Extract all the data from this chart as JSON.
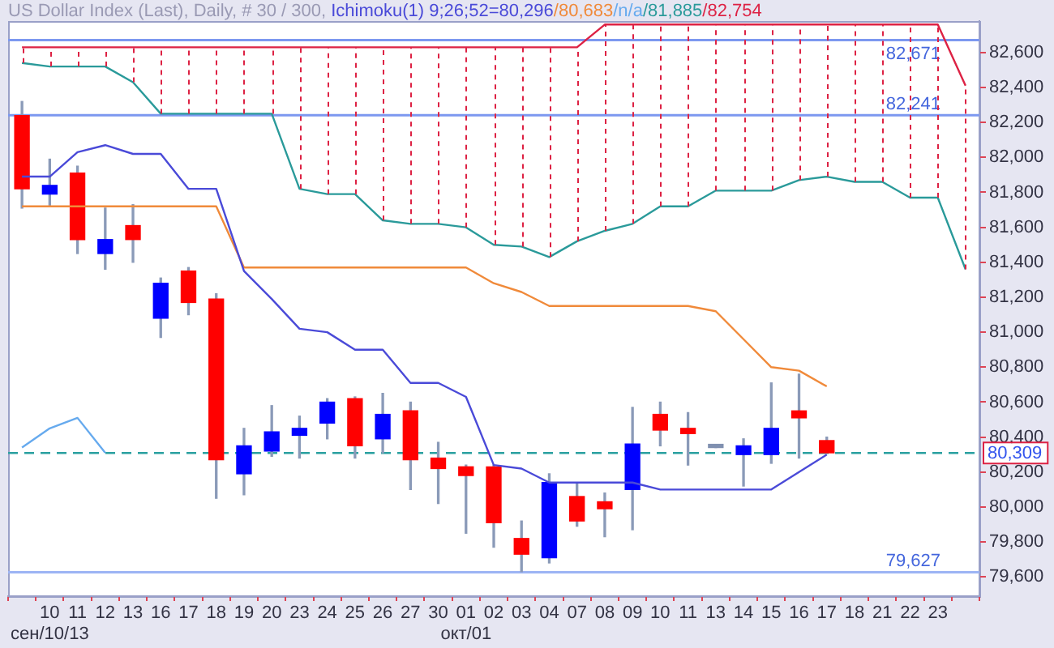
{
  "chart_data": {
    "type": "candlestick",
    "title": "US Dollar Index (Last), Daily, # 30 / 300,",
    "legend_title": "Ichimoku(1) 9;26;52=",
    "legend": "top",
    "marker": "none",
    "categories": [
      null,
      "10",
      "11",
      "12",
      "13",
      "16",
      "17",
      "18",
      "19",
      "20",
      "23",
      "24",
      "25",
      "26",
      "27",
      "30",
      "01",
      "02",
      "03",
      "04",
      "07",
      "08",
      "09",
      "10",
      "11",
      "13",
      "14",
      "15",
      "16",
      "17",
      "18",
      "21",
      "22",
      "23",
      null
    ],
    "ohlc": [
      [
        82240,
        82320,
        81710,
        81820
      ],
      [
        81790,
        81990,
        81720,
        81840
      ],
      [
        81910,
        81950,
        81450,
        81530
      ],
      [
        81450,
        81710,
        81360,
        81530
      ],
      [
        81610,
        81730,
        81400,
        81530
      ],
      [
        81080,
        81310,
        80970,
        81280
      ],
      [
        81350,
        81370,
        81100,
        81170
      ],
      [
        81190,
        81220,
        80050,
        80270
      ],
      [
        80190,
        80450,
        80070,
        80350
      ],
      [
        80320,
        80580,
        80290,
        80430
      ],
      [
        80410,
        80520,
        80280,
        80450
      ],
      [
        80480,
        80620,
        80390,
        80600
      ],
      [
        80620,
        80630,
        80280,
        80350
      ],
      [
        80390,
        80650,
        80310,
        80530
      ],
      [
        80550,
        80600,
        80100,
        80270
      ],
      [
        80280,
        80370,
        80020,
        80220
      ],
      [
        80230,
        80240,
        79850,
        80180
      ],
      [
        80230,
        80240,
        79770,
        79910
      ],
      [
        79820,
        79920,
        79630,
        79730
      ],
      [
        79710,
        80190,
        79680,
        80140
      ],
      [
        80060,
        80140,
        79890,
        79920
      ],
      [
        80030,
        80080,
        79830,
        79990
      ],
      [
        80100,
        80570,
        79870,
        80360
      ],
      [
        80530,
        80600,
        80350,
        80440
      ],
      [
        80450,
        80540,
        80240,
        80420
      ],
      [
        80340,
        80350,
        80340,
        80350
      ],
      [
        80300,
        80390,
        80120,
        80350
      ],
      [
        80300,
        80710,
        80250,
        80450
      ],
      [
        80550,
        80760,
        80280,
        80510
      ],
      [
        80380,
        80400,
        80310,
        80310
      ],
      null,
      null,
      null,
      null,
      null
    ],
    "colors": [
      "#ff0000",
      "#0000ff",
      "#ff0000",
      "#0000ff",
      "#ff0000",
      "#0000ff",
      "#ff0000",
      "#ff0000",
      "#0000ff",
      "#0000ff",
      "#0000ff",
      "#0000ff",
      "#ff0000",
      "#0000ff",
      "#ff0000",
      "#ff0000",
      "#ff0000",
      "#ff0000",
      "#ff0000",
      "#0000ff",
      "#ff0000",
      "#ff0000",
      "#0000ff",
      "#ff0000",
      "#ff0000",
      "#8090b0",
      "#0000ff",
      "#0000ff",
      "#ff0000",
      "#ff0000",
      null,
      null,
      null,
      null,
      null
    ],
    "series": [
      {
        "type": "line",
        "name": "80,296",
        "color": "#4a4ad8",
        "values": [
          81890,
          81890,
          82030,
          82070,
          82020,
          82020,
          81820,
          81820,
          81350,
          81190,
          81020,
          81000,
          80900,
          80900,
          80710,
          80710,
          80630,
          80240,
          80220,
          80140,
          80140,
          80140,
          80140,
          80100,
          80100,
          80100,
          80100,
          80100,
          80200,
          80300,
          null,
          null,
          null,
          null,
          null
        ]
      },
      {
        "type": "line",
        "name": "/80,683",
        "color": "#f08a3a",
        "values": [
          81720,
          81720,
          81720,
          81720,
          81720,
          81720,
          81720,
          81720,
          81370,
          81370,
          81370,
          81370,
          81370,
          81370,
          81370,
          81370,
          81370,
          81280,
          81230,
          81150,
          81150,
          81150,
          81150,
          81150,
          81150,
          81120,
          80960,
          80800,
          80780,
          80690,
          null,
          null,
          null,
          null,
          null
        ]
      },
      {
        "type": "line",
        "name": "/n/a",
        "color": "#66aaee",
        "values": [
          80340,
          80450,
          80510,
          80310,
          null,
          null,
          null,
          null,
          null,
          null,
          null,
          null,
          null,
          null,
          null,
          null,
          null,
          null,
          null,
          null,
          null,
          null,
          null,
          null,
          null,
          null,
          null,
          null,
          null,
          null,
          null,
          null,
          null,
          null,
          null
        ]
      },
      {
        "type": "line",
        "name": "/81,885",
        "color": "#2a9a9a",
        "values": [
          82540,
          82520,
          82520,
          82520,
          82430,
          82250,
          82250,
          82250,
          82250,
          82250,
          81820,
          81790,
          81790,
          81640,
          81620,
          81620,
          81600,
          81500,
          81490,
          81430,
          81520,
          81580,
          81620,
          81720,
          81720,
          81810,
          81810,
          81810,
          81870,
          81890,
          81860,
          81860,
          81770,
          81770,
          81360
        ]
      },
      {
        "type": "line",
        "name": "/82,754",
        "color": "#dd2244",
        "values": [
          82630,
          82630,
          82630,
          82630,
          82630,
          82630,
          82630,
          82630,
          82630,
          82630,
          82630,
          82630,
          82630,
          82630,
          82630,
          82630,
          82630,
          82630,
          82630,
          82630,
          82630,
          82760,
          82760,
          82760,
          82760,
          82760,
          82760,
          82760,
          82760,
          82760,
          82760,
          82760,
          82760,
          82760,
          82410
        ]
      }
    ],
    "ylim": [
      79490,
      82780
    ],
    "yticks": [
      {
        "value": 79600,
        "label": "79,600"
      },
      {
        "value": 79800,
        "label": "79,800"
      },
      {
        "value": 80000,
        "label": "80,000"
      },
      {
        "value": 80200,
        "label": "80,200"
      },
      {
        "value": 80400,
        "label": "80,400"
      },
      {
        "value": 80600,
        "label": "80,600"
      },
      {
        "value": 80800,
        "label": "80,800"
      },
      {
        "value": 81000,
        "label": "81,000"
      },
      {
        "value": 81200,
        "label": "81,200"
      },
      {
        "value": 81400,
        "label": "81,400"
      },
      {
        "value": 81600,
        "label": "81,600"
      },
      {
        "value": 81800,
        "label": "81,800"
      },
      {
        "value": 82000,
        "label": "82,000"
      },
      {
        "value": 82200,
        "label": "82,200"
      },
      {
        "value": 82400,
        "label": "82,400"
      },
      {
        "value": 82600,
        "label": "82,600"
      }
    ],
    "ref_lines": [
      {
        "axis": "y",
        "value": 82671,
        "label": "82,671",
        "color": "#7c98f0"
      },
      {
        "axis": "y",
        "value": 82241,
        "label": "82,241",
        "color": "#7c98f0"
      },
      {
        "axis": "y",
        "value": 79627,
        "label": "79,627",
        "color": "#9cb4f4"
      },
      {
        "axis": "y",
        "value": 80309,
        "label": "80,309",
        "color": "#2aa0a0",
        "line_style": "dashed"
      }
    ],
    "annotations": [
      "сен/10/13",
      "окт/01"
    ]
  }
}
